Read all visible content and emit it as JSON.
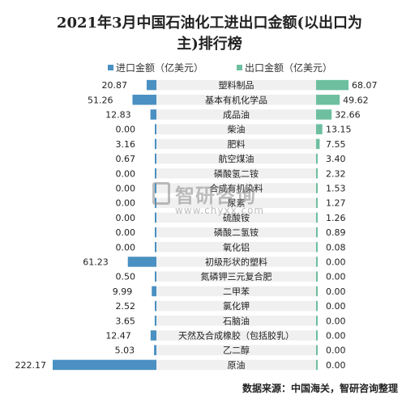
{
  "chart_data": {
    "type": "bar",
    "title_line1": "2021年3月中国石油化工进出口金额(以出口为",
    "title_line2": "主)排行榜",
    "source": "数据来源：中国海关，智研咨询整理",
    "watermark": {
      "name": "智研咨询",
      "url": "www.chyxx.com"
    },
    "colors": {
      "import": "#4a90c2",
      "export": "#6dbfa0",
      "label_bg": "#f0f0f0"
    },
    "categories": [
      "塑料制品",
      "基本有机化学品",
      "成品油",
      "柴油",
      "肥料",
      "航空煤油",
      "磷酸氢二铵",
      "合成有机染料",
      "尿素",
      "硫酸铵",
      "磷酸二氢铵",
      "氧化铝",
      "初级形状的塑料",
      "氮磷钾三元复合肥",
      "二甲苯",
      "氯化钾",
      "石脑油",
      "天然及合成橡胶（包括胶乳）",
      "乙二醇",
      "原油"
    ],
    "series": [
      {
        "name": "进口金额（亿美元）",
        "values": [
          20.87,
          51.26,
          12.83,
          0.0,
          3.16,
          0.67,
          0.0,
          0.0,
          0.0,
          0.0,
          0.0,
          0.0,
          61.23,
          0.5,
          9.99,
          2.52,
          3.65,
          12.47,
          5.03,
          222.17
        ],
        "labels": [
          "20.87",
          "51.26",
          "12.83",
          "0.00",
          "3.16",
          "0.67",
          "0.00",
          "0.00",
          "0.00",
          "0.00",
          "0.00",
          "0.00",
          "61.23",
          "0.50",
          "9.99",
          "2.52",
          "3.65",
          "12.47",
          "5.03",
          "222.17"
        ]
      },
      {
        "name": "出口金额（亿美元）",
        "values": [
          68.07,
          49.62,
          32.66,
          13.15,
          7.55,
          3.4,
          2.32,
          1.53,
          1.27,
          1.26,
          0.89,
          0.08,
          0.0,
          0.0,
          0.0,
          0.0,
          0.0,
          0.0,
          0.0,
          0.0
        ],
        "labels": [
          "68.07",
          "49.62",
          "32.66",
          "13.15",
          "7.55",
          "3.40",
          "2.32",
          "1.53",
          "1.27",
          "1.26",
          "0.89",
          "0.08",
          "0.00",
          "0.00",
          "0.00",
          "0.00",
          "0.00",
          "0.00",
          "0.00",
          "0.00"
        ]
      }
    ],
    "legend_position": "top",
    "xlim_import": [
      0,
      222.17
    ],
    "xlim_export": [
      0,
      68.07
    ]
  }
}
